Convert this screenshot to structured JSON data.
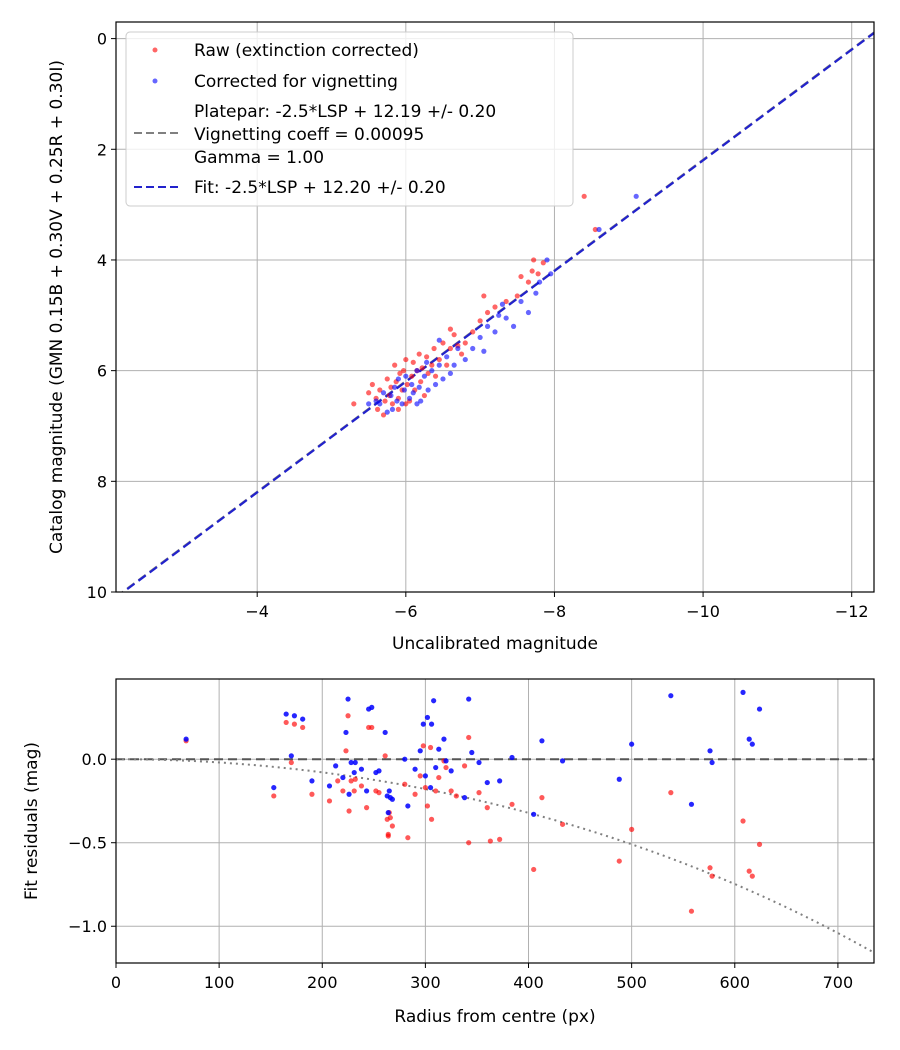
{
  "chart_data": [
    {
      "type": "scatter",
      "name": "catalog-vs-uncalibrated",
      "xlabel": "Uncalibrated magnitude",
      "ylabel": "Catalog magnitude (GMN 0.15B + 0.30V + 0.25R + 0.30I)",
      "xlim": [
        -2.1,
        -12.3
      ],
      "ylim": [
        10,
        -0.3
      ],
      "x_inverted": true,
      "y_inverted": true,
      "grid": true,
      "xticks": [
        -4,
        -6,
        -8,
        -10,
        -12
      ],
      "xtick_labels": [
        "−4",
        "−6",
        "−8",
        "−10",
        "−12"
      ],
      "yticks": [
        0,
        2,
        4,
        6,
        8,
        10
      ],
      "ytick_labels": [
        "0",
        "2",
        "4",
        "6",
        "8",
        "10"
      ],
      "legend_position": "top-left",
      "legend": [
        {
          "label": "Raw (extinction corrected)",
          "kind": "marker",
          "color": "#ff0000"
        },
        {
          "label": "Corrected for vignetting",
          "kind": "marker",
          "color": "#0000ff"
        },
        {
          "label": "Platepar: -2.5*LSP + 12.19 +/- 0.20",
          "kind": "line",
          "color": "#808080"
        },
        {
          "label": "Vignetting coeff = 0.00095",
          "kind": "text"
        },
        {
          "label": "Gamma = 1.00",
          "kind": "text"
        },
        {
          "label": "Fit: -2.5*LSP + 12.20 +/- 0.20",
          "kind": "line",
          "color": "#0000cc"
        }
      ],
      "fit_line": {
        "slope": 1.0,
        "intercept": 12.2,
        "color": "#2222cc"
      },
      "platepar_line": {
        "slope": 1.0,
        "intercept": 12.19,
        "color": "#808080"
      },
      "series": [
        {
          "name": "Raw (extinction corrected)",
          "color": "#ff0000",
          "points": [
            [
              -5.3,
              6.6
            ],
            [
              -5.5,
              6.4
            ],
            [
              -5.55,
              6.25
            ],
            [
              -5.6,
              6.5
            ],
            [
              -5.62,
              6.7
            ],
            [
              -5.65,
              6.35
            ],
            [
              -5.7,
              6.8
            ],
            [
              -5.72,
              6.55
            ],
            [
              -5.75,
              6.15
            ],
            [
              -5.78,
              6.45
            ],
            [
              -5.8,
              6.3
            ],
            [
              -5.82,
              6.6
            ],
            [
              -5.85,
              5.9
            ],
            [
              -5.87,
              6.2
            ],
            [
              -5.9,
              6.5
            ],
            [
              -5.92,
              6.05
            ],
            [
              -5.95,
              6.35
            ],
            [
              -5.97,
              6.0
            ],
            [
              -6.0,
              5.8
            ],
            [
              -6.02,
              6.25
            ],
            [
              -6.05,
              6.55
            ],
            [
              -6.08,
              6.1
            ],
            [
              -6.1,
              5.85
            ],
            [
              -6.12,
              6.35
            ],
            [
              -6.15,
              6.0
            ],
            [
              -6.18,
              5.7
            ],
            [
              -6.2,
              6.2
            ],
            [
              -6.22,
              5.95
            ],
            [
              -6.25,
              6.45
            ],
            [
              -6.28,
              5.75
            ],
            [
              -6.3,
              6.05
            ],
            [
              -6.35,
              5.9
            ],
            [
              -6.38,
              5.6
            ],
            [
              -6.4,
              6.1
            ],
            [
              -6.45,
              5.8
            ],
            [
              -6.5,
              5.5
            ],
            [
              -6.55,
              5.9
            ],
            [
              -6.6,
              5.6
            ],
            [
              -6.65,
              5.35
            ],
            [
              -6.7,
              5.55
            ],
            [
              -6.75,
              5.7
            ],
            [
              -6.8,
              5.5
            ],
            [
              -6.9,
              5.3
            ],
            [
              -7.0,
              5.1
            ],
            [
              -7.05,
              4.65
            ],
            [
              -7.1,
              4.95
            ],
            [
              -7.2,
              4.85
            ],
            [
              -7.35,
              4.75
            ],
            [
              -7.5,
              4.65
            ],
            [
              -7.55,
              4.3
            ],
            [
              -7.65,
              4.4
            ],
            [
              -7.72,
              4.0
            ],
            [
              -7.78,
              4.25
            ],
            [
              -7.85,
              4.05
            ],
            [
              -8.4,
              2.85
            ],
            [
              -8.55,
              3.45
            ],
            [
              -5.9,
              6.7
            ],
            [
              -6.6,
              5.25
            ],
            [
              -7.7,
              4.2
            ],
            [
              -6.0,
              6.6
            ]
          ]
        },
        {
          "name": "Corrected for vignetting",
          "color": "#0000ff",
          "points": [
            [
              -5.6,
              6.55
            ],
            [
              -5.65,
              6.6
            ],
            [
              -5.7,
              6.4
            ],
            [
              -5.75,
              6.75
            ],
            [
              -5.8,
              6.45
            ],
            [
              -5.82,
              6.7
            ],
            [
              -5.85,
              6.3
            ],
            [
              -5.88,
              6.55
            ],
            [
              -5.9,
              6.15
            ],
            [
              -5.95,
              6.6
            ],
            [
              -5.98,
              6.35
            ],
            [
              -6.0,
              6.1
            ],
            [
              -6.05,
              6.5
            ],
            [
              -6.08,
              6.25
            ],
            [
              -6.1,
              6.4
            ],
            [
              -6.15,
              6.0
            ],
            [
              -6.18,
              6.3
            ],
            [
              -6.2,
              6.55
            ],
            [
              -6.25,
              6.1
            ],
            [
              -6.28,
              5.85
            ],
            [
              -6.3,
              6.35
            ],
            [
              -6.35,
              6.0
            ],
            [
              -6.4,
              6.25
            ],
            [
              -6.45,
              5.9
            ],
            [
              -6.5,
              6.15
            ],
            [
              -6.55,
              5.75
            ],
            [
              -6.6,
              6.05
            ],
            [
              -6.65,
              5.9
            ],
            [
              -6.7,
              5.6
            ],
            [
              -6.8,
              5.8
            ],
            [
              -6.9,
              5.6
            ],
            [
              -7.0,
              5.4
            ],
            [
              -7.05,
              5.65
            ],
            [
              -7.1,
              5.2
            ],
            [
              -7.2,
              5.3
            ],
            [
              -7.35,
              5.05
            ],
            [
              -7.45,
              5.2
            ],
            [
              -7.55,
              4.75
            ],
            [
              -7.65,
              4.95
            ],
            [
              -7.75,
              4.6
            ],
            [
              -7.8,
              4.4
            ],
            [
              -7.9,
              4.0
            ],
            [
              -7.95,
              4.25
            ],
            [
              -8.6,
              3.45
            ],
            [
              -9.1,
              2.85
            ],
            [
              -5.5,
              6.6
            ],
            [
              -6.45,
              5.45
            ],
            [
              -7.3,
              4.8
            ],
            [
              -6.15,
              6.6
            ],
            [
              -7.25,
              5.0
            ]
          ]
        }
      ]
    },
    {
      "type": "scatter",
      "name": "residuals-vs-radius",
      "xlabel": "Radius from centre (px)",
      "ylabel": "Fit residuals (mag)",
      "xlim": [
        0,
        735
      ],
      "ylim": [
        -1.22,
        0.48
      ],
      "grid": true,
      "xticks": [
        0,
        100,
        200,
        300,
        400,
        500,
        600,
        700
      ],
      "xtick_labels": [
        "0",
        "100",
        "200",
        "300",
        "400",
        "500",
        "600",
        "700"
      ],
      "yticks": [
        0.0,
        -0.5,
        -1.0
      ],
      "ytick_labels": [
        "0.0",
        "−0.5",
        "−1.0"
      ],
      "zero_line": {
        "y": 0.0,
        "color": "#555555"
      },
      "vignetting_curve": {
        "coefficient": 0.00095,
        "color": "#808080"
      },
      "series": [
        {
          "name": "Raw (extinction corrected)",
          "color": "#ff0000",
          "points": [
            [
              68,
              0.11
            ],
            [
              153,
              -0.22
            ],
            [
              165,
              0.22
            ],
            [
              170,
              -0.02
            ],
            [
              173,
              0.21
            ],
            [
              181,
              0.19
            ],
            [
              190,
              -0.21
            ],
            [
              207,
              -0.25
            ],
            [
              215,
              -0.13
            ],
            [
              220,
              -0.19
            ],
            [
              223,
              0.05
            ],
            [
              225,
              0.26
            ],
            [
              226,
              -0.31
            ],
            [
              228,
              -0.13
            ],
            [
              231,
              -0.19
            ],
            [
              232,
              -0.12
            ],
            [
              238,
              -0.16
            ],
            [
              243,
              -0.29
            ],
            [
              245,
              0.19
            ],
            [
              248,
              0.19
            ],
            [
              252,
              -0.19
            ],
            [
              255,
              -0.2
            ],
            [
              261,
              0.02
            ],
            [
              263,
              -0.36
            ],
            [
              264,
              -0.46
            ],
            [
              264,
              -0.45
            ],
            [
              265,
              -0.32
            ],
            [
              266,
              -0.35
            ],
            [
              268,
              -0.4
            ],
            [
              280,
              -0.15
            ],
            [
              283,
              -0.47
            ],
            [
              290,
              -0.21
            ],
            [
              295,
              -0.1
            ],
            [
              298,
              0.08
            ],
            [
              300,
              -0.17
            ],
            [
              302,
              -0.28
            ],
            [
              305,
              0.07
            ],
            [
              306,
              -0.36
            ],
            [
              310,
              -0.19
            ],
            [
              313,
              -0.11
            ],
            [
              318,
              -0.01
            ],
            [
              320,
              -0.05
            ],
            [
              325,
              -0.19
            ],
            [
              330,
              -0.22
            ],
            [
              338,
              -0.04
            ],
            [
              342,
              0.13
            ],
            [
              342,
              -0.5
            ],
            [
              352,
              -0.2
            ],
            [
              360,
              -0.29
            ],
            [
              363,
              -0.49
            ],
            [
              372,
              -0.48
            ],
            [
              384,
              -0.27
            ],
            [
              405,
              -0.66
            ],
            [
              413,
              -0.23
            ],
            [
              433,
              -0.39
            ],
            [
              488,
              -0.61
            ],
            [
              500,
              -0.42
            ],
            [
              538,
              -0.2
            ],
            [
              558,
              -0.91
            ],
            [
              576,
              -0.65
            ],
            [
              578,
              -0.7
            ],
            [
              608,
              -0.37
            ],
            [
              614,
              -0.67
            ],
            [
              617,
              -0.7
            ],
            [
              624,
              -0.51
            ]
          ]
        },
        {
          "name": "Corrected for vignetting",
          "color": "#0000ff",
          "points": [
            [
              68,
              0.12
            ],
            [
              153,
              -0.17
            ],
            [
              165,
              0.27
            ],
            [
              170,
              0.02
            ],
            [
              173,
              0.26
            ],
            [
              181,
              0.24
            ],
            [
              190,
              -0.13
            ],
            [
              207,
              -0.16
            ],
            [
              213,
              -0.04
            ],
            [
              220,
              -0.11
            ],
            [
              223,
              0.16
            ],
            [
              225,
              0.36
            ],
            [
              226,
              -0.21
            ],
            [
              228,
              -0.02
            ],
            [
              231,
              -0.08
            ],
            [
              232,
              -0.02
            ],
            [
              238,
              -0.06
            ],
            [
              243,
              -0.19
            ],
            [
              245,
              0.3
            ],
            [
              248,
              0.31
            ],
            [
              252,
              -0.08
            ],
            [
              255,
              -0.07
            ],
            [
              261,
              0.16
            ],
            [
              263,
              -0.22
            ],
            [
              264,
              -0.32
            ],
            [
              265,
              -0.19
            ],
            [
              266,
              -0.23
            ],
            [
              268,
              -0.24
            ],
            [
              280,
              0.0
            ],
            [
              283,
              -0.28
            ],
            [
              290,
              -0.06
            ],
            [
              295,
              0.05
            ],
            [
              298,
              0.21
            ],
            [
              300,
              -0.1
            ],
            [
              302,
              0.25
            ],
            [
              305,
              -0.17
            ],
            [
              306,
              0.21
            ],
            [
              308,
              0.35
            ],
            [
              310,
              -0.05
            ],
            [
              313,
              0.06
            ],
            [
              318,
              0.12
            ],
            [
              320,
              -0.01
            ],
            [
              325,
              -0.07
            ],
            [
              338,
              -0.23
            ],
            [
              342,
              0.36
            ],
            [
              345,
              0.04
            ],
            [
              352,
              -0.02
            ],
            [
              360,
              -0.14
            ],
            [
              372,
              -0.13
            ],
            [
              384,
              0.01
            ],
            [
              405,
              -0.33
            ],
            [
              413,
              0.11
            ],
            [
              433,
              -0.01
            ],
            [
              488,
              -0.12
            ],
            [
              500,
              0.09
            ],
            [
              538,
              0.38
            ],
            [
              558,
              -0.27
            ],
            [
              576,
              0.05
            ],
            [
              578,
              -0.02
            ],
            [
              608,
              0.4
            ],
            [
              614,
              0.12
            ],
            [
              617,
              0.09
            ],
            [
              624,
              0.3
            ]
          ]
        }
      ]
    }
  ]
}
